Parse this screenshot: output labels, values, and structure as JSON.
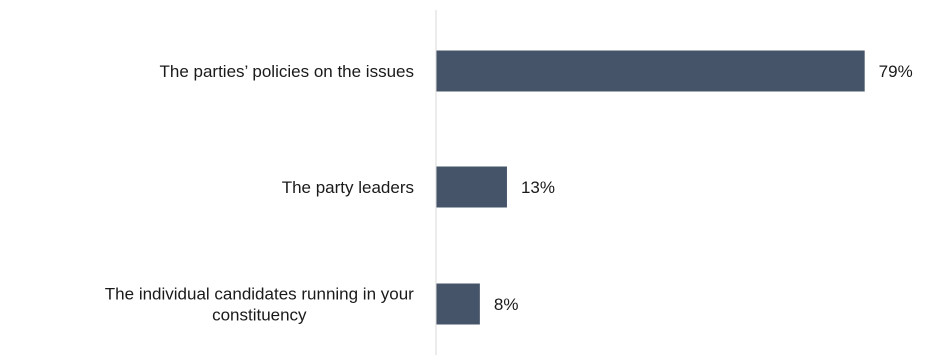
{
  "chart_data": {
    "type": "bar",
    "orientation": "horizontal",
    "categories": [
      [
        "The parties’ policies on the issues"
      ],
      [
        "The party leaders"
      ],
      [
        "The individual candidates running in your",
        "constituency"
      ]
    ],
    "values": [
      79,
      13,
      8
    ],
    "value_labels": [
      "79%",
      "13%",
      "8%"
    ],
    "bar_color": "#465469",
    "axis_color": "#d9d9d9",
    "grid": false,
    "xlim": [
      0,
      100
    ]
  }
}
